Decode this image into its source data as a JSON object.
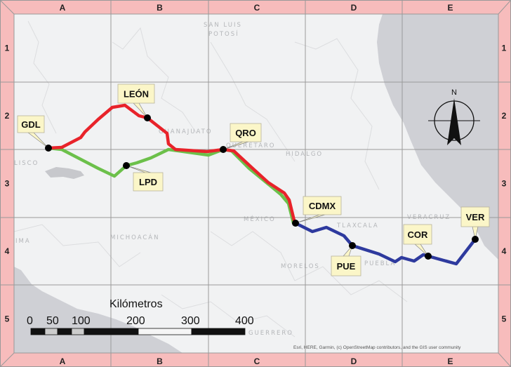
{
  "frame": {
    "columns": [
      "A",
      "B",
      "C",
      "D",
      "E"
    ],
    "rows": [
      "1",
      "2",
      "3",
      "4",
      "5"
    ],
    "frame_color": "#f7bcbc",
    "grid_color": "#9a9a9a"
  },
  "basemap": {
    "land_color": "#f1f2f3",
    "water_color": "#cfd0d5",
    "region_labels": [
      "SAN LUIS",
      "POTOSÍ",
      "GUANAJUATO",
      "QUERÉTARO",
      "HIDALGO",
      "LISCO",
      "MICHOACÁN",
      "MÉXICO",
      "TLAXCALA",
      "MORELOS",
      "PUEBLA",
      "VERACRUZ",
      "GUERRERO",
      "IMA"
    ]
  },
  "cities": [
    {
      "code": "GDL"
    },
    {
      "code": "LEÓN"
    },
    {
      "code": "QRO"
    },
    {
      "code": "LPD"
    },
    {
      "code": "CDMX"
    },
    {
      "code": "PUE"
    },
    {
      "code": "COR"
    },
    {
      "code": "VER"
    }
  ],
  "routes": [
    {
      "id": "red",
      "color": "#e8232a",
      "stops": [
        "GDL",
        "LEÓN",
        "QRO",
        "CDMX"
      ]
    },
    {
      "id": "green",
      "color": "#6cc04a",
      "stops": [
        "GDL",
        "LPD",
        "QRO",
        "CDMX"
      ]
    },
    {
      "id": "blue",
      "color": "#2e3a9e",
      "stops": [
        "CDMX",
        "PUE",
        "COR",
        "VER"
      ]
    }
  ],
  "north_arrow": {
    "label": "N"
  },
  "scale_bar": {
    "title": "Kilómetros",
    "ticks": [
      "0",
      "50",
      "100",
      "200",
      "300",
      "400"
    ]
  },
  "attribution": "Esri, HERE, Garmin, (c) OpenStreetMap contributors, and the GIS user community"
}
